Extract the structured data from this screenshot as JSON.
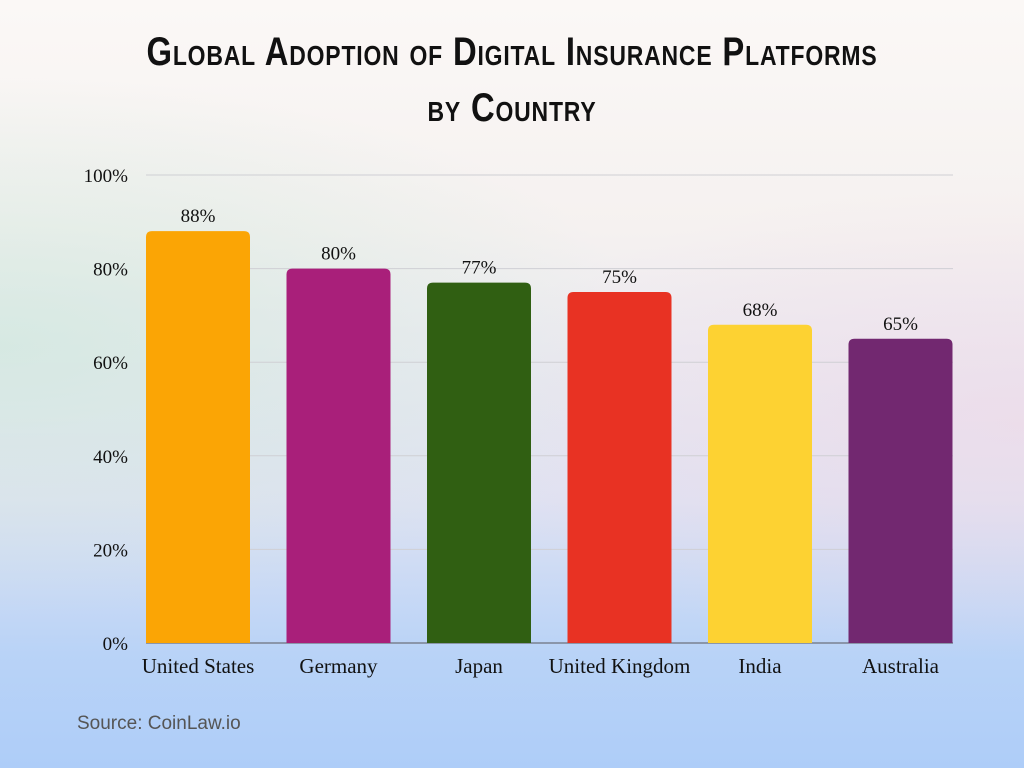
{
  "chart_data": {
    "type": "bar",
    "title": "Global Adoption of Digital Insurance Platforms by Country",
    "title_lines": [
      "Global Adoption of Digital Insurance Platforms",
      "by Country"
    ],
    "categories": [
      "United States",
      "Germany",
      "Japan",
      "United Kingdom",
      "India",
      "Australia"
    ],
    "values": [
      88,
      80,
      77,
      75,
      68,
      65
    ],
    "data_labels": [
      "88%",
      "80%",
      "77%",
      "75%",
      "68%",
      "65%"
    ],
    "colors": [
      "#fba505",
      "#a91f7a",
      "#305f12",
      "#e83223",
      "#fdd232",
      "#722870"
    ],
    "ylim": [
      0,
      100
    ],
    "yticks": [
      0,
      20,
      40,
      60,
      80,
      100
    ],
    "ytick_labels": [
      "0%",
      "20%",
      "40%",
      "60%",
      "80%",
      "100%"
    ],
    "grid": true,
    "xlabel": "",
    "ylabel": ""
  },
  "source": "Source: CoinLaw.io"
}
